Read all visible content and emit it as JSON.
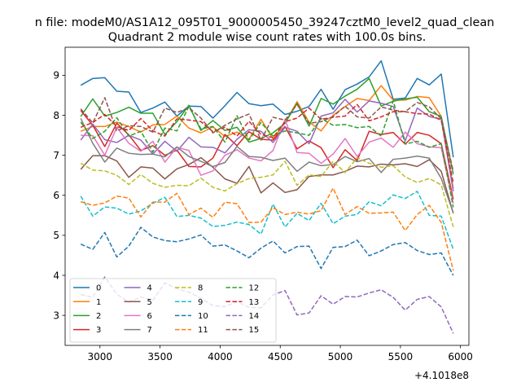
{
  "chart_data": {
    "type": "line",
    "suptitle": "n file: modeM0/AS1A12_095T01_9000005450_39247cztM0_level2_quad_clean",
    "title": "Quadrant 2 module wise count rates with 100.0s bins.",
    "xlabel": "",
    "ylabel": "",
    "x_offset_label": "+4.1018e8",
    "xlim": [
      2710,
      6070
    ],
    "ylim": [
      2.25,
      9.7
    ],
    "xticks": [
      3000,
      3500,
      4000,
      4500,
      5000,
      5500,
      6000
    ],
    "xtick_labels": [
      "3000",
      "3500",
      "4000",
      "4500",
      "5000",
      "5500",
      "6000"
    ],
    "yticks": [
      3,
      4,
      5,
      6,
      7,
      8,
      9
    ],
    "ytick_labels": [
      "3",
      "4",
      "5",
      "6",
      "7",
      "8",
      "9"
    ],
    "legend_position": "lower-left",
    "legend_columns": 4,
    "x": [
      2840,
      2940,
      3040,
      3140,
      3240,
      3340,
      3440,
      3540,
      3640,
      3740,
      3840,
      3940,
      4040,
      4140,
      4240,
      4340,
      4440,
      4540,
      4640,
      4740,
      4840,
      4940,
      5040,
      5140,
      5240,
      5340,
      5440,
      5540,
      5640,
      5740,
      5840,
      5940
    ],
    "series": [
      {
        "name": "0",
        "color": "#1f77b4",
        "dash": "solid",
        "values": [
          8.75,
          8.92,
          8.94,
          8.6,
          8.58,
          8.07,
          8.18,
          8.33,
          7.98,
          8.23,
          8.22,
          7.93,
          8.24,
          8.57,
          8.29,
          8.24,
          8.28,
          8.02,
          8.1,
          8.22,
          8.65,
          8.15,
          8.64,
          8.78,
          8.96,
          9.36,
          8.4,
          8.43,
          8.92,
          8.76,
          9.03,
          6.95
        ]
      },
      {
        "name": "1",
        "color": "#ff7f0e",
        "dash": "solid",
        "values": [
          7.6,
          7.72,
          7.72,
          7.83,
          7.72,
          7.58,
          7.76,
          7.77,
          7.98,
          7.68,
          7.56,
          7.71,
          7.47,
          7.58,
          7.4,
          7.9,
          7.41,
          7.81,
          8.34,
          7.83,
          7.61,
          8.0,
          8.22,
          8.42,
          8.37,
          8.74,
          8.38,
          8.38,
          8.47,
          8.44,
          7.97,
          6.17
        ]
      },
      {
        "name": "2",
        "color": "#2ca02c",
        "dash": "solid",
        "values": [
          7.97,
          8.41,
          7.98,
          8.07,
          8.2,
          8.05,
          8.05,
          7.52,
          7.84,
          8.25,
          7.62,
          7.87,
          7.62,
          7.7,
          7.33,
          7.42,
          7.56,
          7.8,
          8.3,
          7.73,
          8.42,
          8.28,
          8.48,
          8.65,
          8.92,
          8.23,
          8.35,
          8.41,
          8.45,
          8.09,
          7.97,
          6.53
        ]
      },
      {
        "name": "3",
        "color": "#d62728",
        "dash": "solid",
        "values": [
          8.12,
          7.75,
          7.22,
          7.8,
          7.51,
          7.12,
          7.24,
          7.0,
          7.13,
          6.72,
          6.71,
          6.93,
          7.52,
          7.24,
          7.59,
          7.4,
          7.38,
          7.72,
          7.16,
          7.36,
          7.19,
          6.69,
          7.14,
          6.87,
          7.6,
          7.52,
          7.57,
          7.28,
          7.57,
          7.5,
          7.29,
          5.9
        ]
      },
      {
        "name": "4",
        "color": "#9467bd",
        "dash": "solid",
        "values": [
          7.38,
          7.78,
          7.39,
          7.32,
          7.5,
          7.38,
          7.03,
          7.35,
          7.1,
          7.45,
          7.21,
          7.2,
          7.06,
          7.4,
          7.64,
          7.6,
          7.32,
          7.7,
          7.6,
          7.29,
          7.98,
          8.06,
          8.4,
          8.08,
          8.36,
          8.3,
          8.22,
          7.36,
          8.18,
          7.97,
          7.9,
          6.1
        ]
      },
      {
        "name": "5",
        "color": "#8c564b",
        "dash": "solid",
        "values": [
          6.65,
          6.99,
          6.99,
          6.86,
          6.45,
          6.71,
          6.68,
          6.41,
          6.66,
          6.77,
          6.94,
          6.7,
          6.41,
          6.3,
          6.72,
          6.06,
          6.31,
          6.07,
          6.14,
          6.47,
          6.51,
          6.51,
          6.6,
          6.73,
          6.71,
          6.78,
          6.76,
          6.79,
          6.72,
          6.89,
          6.6,
          5.55
        ]
      },
      {
        "name": "6",
        "color": "#e377c2",
        "dash": "solid",
        "values": [
          7.5,
          7.49,
          7.0,
          7.7,
          7.3,
          7.1,
          7.35,
          6.83,
          7.2,
          7.12,
          6.5,
          6.61,
          7.0,
          7.14,
          6.93,
          6.86,
          7.12,
          7.9,
          7.07,
          7.05,
          6.8,
          7.03,
          7.42,
          6.97,
          7.33,
          7.43,
          7.2,
          7.58,
          7.29,
          7.21,
          7.19,
          5.8
        ]
      },
      {
        "name": "7",
        "color": "#7f7f7f",
        "dash": "solid",
        "values": [
          7.92,
          7.3,
          6.83,
          7.18,
          7.05,
          7.02,
          7.03,
          6.96,
          7.21,
          6.97,
          6.85,
          6.72,
          6.82,
          7.22,
          6.97,
          6.95,
          6.87,
          6.93,
          6.6,
          6.83,
          6.74,
          6.77,
          6.97,
          6.84,
          6.92,
          6.57,
          6.9,
          6.93,
          6.98,
          6.93,
          6.42,
          5.56
        ]
      },
      {
        "name": "8",
        "color": "#bcbd22",
        "dash": "dashed",
        "values": [
          6.8,
          6.63,
          6.61,
          6.5,
          6.27,
          6.52,
          6.3,
          6.2,
          6.25,
          6.24,
          6.43,
          6.2,
          6.11,
          6.29,
          6.42,
          6.45,
          6.51,
          6.85,
          6.25,
          6.51,
          6.47,
          6.85,
          6.57,
          6.94,
          6.8,
          6.7,
          6.74,
          6.46,
          6.32,
          6.42,
          6.26,
          5.21
        ]
      },
      {
        "name": "9",
        "color": "#17becf",
        "dash": "dashed",
        "values": [
          5.98,
          5.48,
          5.71,
          5.68,
          5.53,
          5.61,
          5.8,
          5.95,
          5.47,
          5.5,
          5.43,
          5.22,
          5.25,
          5.33,
          5.27,
          5.03,
          5.78,
          5.21,
          5.55,
          5.37,
          5.8,
          5.29,
          5.48,
          5.52,
          5.84,
          5.74,
          6.01,
          5.92,
          6.1,
          5.5,
          5.48,
          4.65
        ]
      },
      {
        "name": "10",
        "color": "#1f77b4",
        "dash": "dashed",
        "values": [
          4.78,
          4.65,
          5.07,
          4.46,
          4.73,
          5.2,
          4.96,
          4.87,
          4.84,
          4.91,
          5.01,
          4.73,
          4.76,
          4.61,
          4.44,
          4.68,
          4.86,
          4.56,
          4.72,
          4.73,
          4.17,
          4.7,
          4.72,
          4.88,
          4.49,
          4.61,
          4.77,
          4.82,
          4.62,
          4.52,
          4.56,
          4.0
        ]
      },
      {
        "name": "11",
        "color": "#ff7f0e",
        "dash": "dashed",
        "values": [
          5.84,
          5.75,
          5.81,
          5.98,
          5.93,
          5.46,
          5.83,
          5.83,
          6.05,
          5.52,
          5.68,
          5.45,
          5.83,
          5.79,
          5.32,
          5.33,
          5.69,
          5.52,
          5.58,
          5.53,
          5.62,
          6.18,
          5.52,
          5.72,
          5.55,
          5.56,
          5.58,
          5.12,
          5.52,
          5.75,
          5.32,
          4.12
        ]
      },
      {
        "name": "12",
        "color": "#2ca02c",
        "dash": "dashed",
        "values": [
          7.83,
          7.42,
          7.6,
          7.94,
          7.48,
          7.6,
          7.08,
          7.68,
          7.61,
          8.22,
          7.66,
          7.72,
          7.33,
          7.99,
          7.38,
          7.82,
          7.48,
          7.61,
          7.56,
          7.5,
          7.92,
          7.75,
          7.77,
          7.69,
          7.72,
          7.48,
          8.36,
          7.28,
          7.35,
          7.2,
          7.29,
          5.7
        ]
      },
      {
        "name": "13",
        "color": "#d62728",
        "dash": "dashed",
        "values": [
          7.7,
          7.82,
          8.02,
          7.72,
          7.62,
          7.92,
          7.61,
          7.48,
          7.91,
          7.88,
          7.84,
          7.59,
          7.7,
          7.48,
          7.85,
          7.52,
          7.44,
          7.84,
          7.93,
          8.18,
          7.9,
          7.95,
          7.98,
          8.27,
          7.86,
          7.96,
          8.09,
          8.09,
          8.04,
          8.03,
          7.87,
          6.3
        ]
      },
      {
        "name": "14",
        "color": "#9467bd",
        "dash": "dashed",
        "values": [
          3.52,
          3.45,
          3.96,
          3.53,
          3.33,
          3.46,
          3.38,
          3.81,
          3.67,
          3.58,
          3.43,
          3.24,
          3.22,
          3.34,
          3.2,
          3.19,
          3.51,
          3.62,
          3.01,
          3.06,
          3.49,
          3.28,
          3.47,
          3.46,
          3.56,
          3.64,
          3.45,
          3.13,
          3.4,
          3.47,
          3.21,
          2.55
        ]
      },
      {
        "name": "15",
        "color": "#8c564b",
        "dash": "dashed",
        "values": [
          8.16,
          7.81,
          8.44,
          7.61,
          7.74,
          7.72,
          7.58,
          8.18,
          8.07,
          8.19,
          7.93,
          7.56,
          7.75,
          7.91,
          8.03,
          7.38,
          7.95,
          7.88,
          8.27,
          7.8,
          7.84,
          7.97,
          8.23,
          7.96,
          7.93,
          8.21,
          8.13,
          8.09,
          8.32,
          8.21,
          7.91,
          6.6
        ]
      }
    ]
  }
}
